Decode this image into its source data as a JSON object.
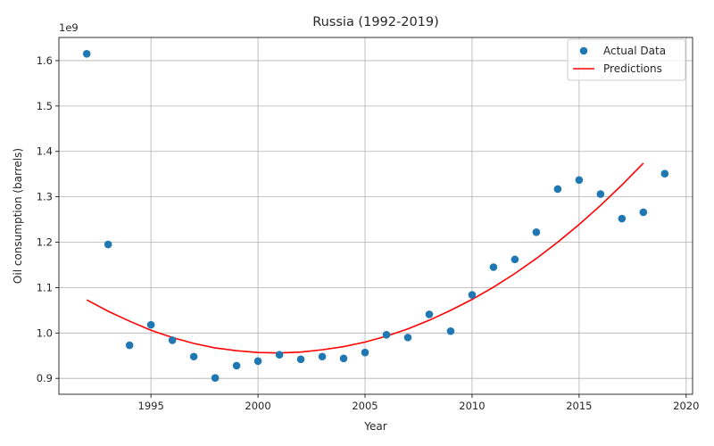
{
  "chart_data": {
    "type": "scatter",
    "title": "Russia (1992-2019)",
    "xlabel": "Year",
    "ylabel": "Oil consumption (barrels)",
    "y_offset_label": "1e9",
    "xlim": [
      1990.7,
      2020.3
    ],
    "ylim": [
      0.865,
      1.651
    ],
    "x_ticks": [
      1995,
      2000,
      2005,
      2010,
      2015,
      2020
    ],
    "y_ticks": [
      0.9,
      1.0,
      1.1,
      1.2,
      1.3,
      1.4,
      1.5,
      1.6
    ],
    "y_tick_labels": [
      "0.9",
      "1.0",
      "1.1",
      "1.2",
      "1.3",
      "1.4",
      "1.5",
      "1.6"
    ],
    "grid": true,
    "legend_position": "top-right",
    "series": [
      {
        "name": "Actual Data",
        "kind": "scatter",
        "color": "#1f77b4",
        "x": [
          1992,
          1993,
          1994,
          1995,
          1996,
          1997,
          1998,
          1999,
          2000,
          2001,
          2002,
          2003,
          2004,
          2005,
          2006,
          2007,
          2008,
          2009,
          2010,
          2011,
          2012,
          2013,
          2014,
          2015,
          2016,
          2017,
          2018,
          2019
        ],
        "y": [
          1.615,
          1.195,
          0.973,
          1.018,
          0.984,
          0.948,
          0.901,
          0.928,
          0.938,
          0.952,
          0.942,
          0.948,
          0.944,
          0.957,
          0.996,
          0.99,
          1.041,
          1.004,
          1.084,
          1.145,
          1.162,
          1.222,
          1.317,
          1.337,
          1.306,
          1.252,
          1.266,
          1.351
        ]
      },
      {
        "name": "Predictions",
        "kind": "line",
        "color": "#ff0000",
        "x": [
          1992,
          1993,
          1994,
          1995,
          1996,
          1997,
          1998,
          1999,
          2000,
          2001,
          2002,
          2003,
          2004,
          2005,
          2006,
          2007,
          2008,
          2009,
          2010,
          2011,
          2012,
          2013,
          2014,
          2015,
          2016,
          2017,
          2018
        ],
        "y": [
          1.073,
          1.048,
          1.026,
          1.006,
          0.99,
          0.977,
          0.967,
          0.961,
          0.957,
          0.956,
          0.958,
          0.963,
          0.97,
          0.98,
          0.993,
          1.009,
          1.028,
          1.05,
          1.074,
          1.101,
          1.131,
          1.164,
          1.2,
          1.239,
          1.281,
          1.326,
          1.374
        ]
      }
    ]
  }
}
